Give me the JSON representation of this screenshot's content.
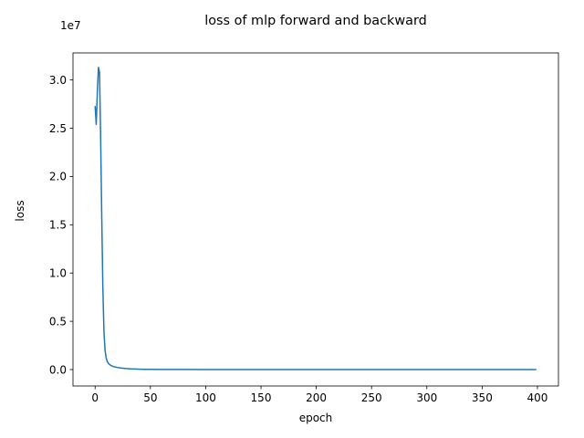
{
  "chart_data": {
    "type": "line",
    "title": "loss of mlp forward and backward",
    "xlabel": "epoch",
    "ylabel": "loss",
    "xlim": [
      -20,
      419
    ],
    "ylim": [
      -1700000,
      32800000
    ],
    "x_ticks": [
      0,
      50,
      100,
      150,
      200,
      250,
      300,
      350,
      400
    ],
    "x_tick_labels": [
      "0",
      "50",
      "100",
      "150",
      "200",
      "250",
      "300",
      "350",
      "400"
    ],
    "y_ticks": [
      0,
      5000000,
      10000000,
      15000000,
      20000000,
      25000000,
      30000000
    ],
    "y_tick_labels": [
      "0.0",
      "0.5",
      "1.0",
      "1.5",
      "2.0",
      "2.5",
      "3.0"
    ],
    "y_scale_label": "1e7",
    "grid": false,
    "series": [
      {
        "name": "loss",
        "color": "#1f77b4",
        "x": [
          0,
          1,
          2,
          3,
          4,
          5,
          6,
          7,
          8,
          9,
          10,
          11,
          12,
          13,
          14,
          15,
          16,
          18,
          20,
          22,
          25,
          28,
          32,
          36,
          40,
          45,
          50,
          60,
          70,
          80,
          100,
          150,
          200,
          250,
          300,
          350,
          399
        ],
        "y": [
          27300000,
          25400000,
          28700000,
          31300000,
          30800000,
          24000000,
          15800000,
          8500000,
          3900000,
          2000000,
          1200000,
          820000,
          640000,
          530000,
          450000,
          390000,
          340000,
          270000,
          220000,
          180000,
          140000,
          105000,
          75000,
          55000,
          42000,
          30000,
          22000,
          15000,
          11000,
          8000,
          5000,
          3000,
          2000,
          1500,
          1100,
          800,
          600
        ]
      }
    ]
  }
}
